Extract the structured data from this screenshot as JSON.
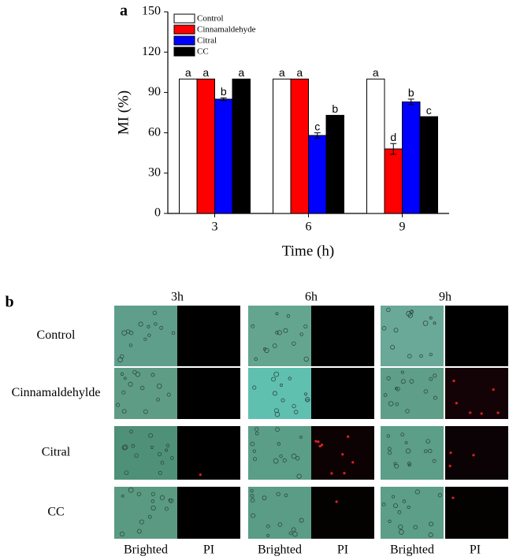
{
  "chart_data": {
    "type": "bar",
    "panel_label": "a",
    "ylabel": "MI (%)",
    "xlabel": "Time (h)",
    "categories": [
      "3",
      "6",
      "9"
    ],
    "ylim": [
      0,
      150
    ],
    "yticks": [
      0,
      30,
      60,
      90,
      120,
      150
    ],
    "legend": "upper left",
    "series": [
      {
        "name": "Control",
        "color": "#ffffff",
        "values": [
          100,
          100,
          100
        ],
        "errors": [
          null,
          null,
          null
        ],
        "labels": [
          "a",
          "a",
          "a"
        ]
      },
      {
        "name": "Cinnamaldehyde",
        "color": "#ff0000",
        "values": [
          100,
          100,
          48
        ],
        "errors": [
          null,
          null,
          4
        ],
        "labels": [
          "a",
          "a",
          "d"
        ]
      },
      {
        "name": "Citral",
        "color": "#0000ff",
        "values": [
          85,
          58,
          83
        ],
        "errors": [
          1,
          2,
          2
        ],
        "labels": [
          "b",
          "c",
          "b"
        ]
      },
      {
        "name": "CC",
        "color": "#000000",
        "values": [
          100,
          73,
          72
        ],
        "errors": [
          null,
          null,
          null
        ],
        "labels": [
          "a",
          "b",
          "c"
        ]
      }
    ]
  },
  "panel_b": {
    "panel_label": "b",
    "columns": [
      "3h",
      "6h",
      "9h"
    ],
    "rows": [
      "Control",
      "Cinnamaldehylde",
      "Citral",
      "CC"
    ],
    "bottom_labels": [
      "Brighted",
      "PI",
      "Brighted",
      "PI",
      "Brighted",
      "PI"
    ]
  }
}
